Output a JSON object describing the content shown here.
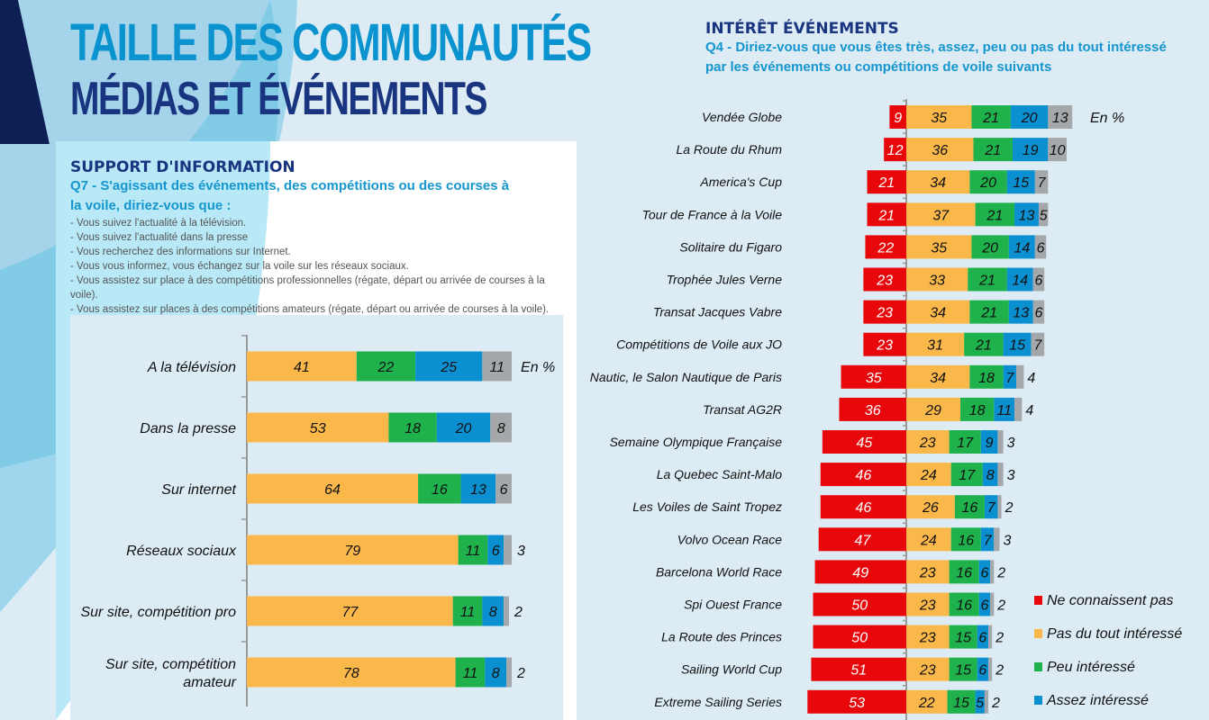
{
  "header": {
    "title_line1": "TAILLE DES COMMUNAUTÉS",
    "title_line2": "MÉDIAS ET ÉVÉNEMENTS"
  },
  "left_section": {
    "heading": "SUPPORT D'INFORMATION",
    "question": "Q7 - S'agissant des événements, des compétitions ou des courses à la voile, diriez-vous que :",
    "bullets": [
      "- Vous suivez l'actualité à la télévision.",
      "- Vous suivez l'actualité dans la presse",
      "- Vous recherchez des informations sur Internet.",
      "- Vous vous informez, vous échangez sur la voile sur les réseaux sociaux.",
      "- Vous assistez sur place à des compétitions professionnelles (régate, départ ou arrivée de courses à la voile).",
      "- Vous assistez sur places à des compétitions amateurs (régate, départ ou arrivée de courses à la voile)."
    ]
  },
  "right_section": {
    "heading": "INTÉRÊT ÉVÉNEMENTS",
    "question_line1": "Q4 - Diriez-vous que vous êtes très, assez, peu ou pas du tout intéressé",
    "question_line2": "par les événements ou compétitions de voile suivants"
  },
  "chart_data": [
    {
      "type": "bar",
      "orientation": "horizontal",
      "stacked": true,
      "unit_label": "En %",
      "categories": [
        "A la télévision",
        "Dans la presse",
        "Sur internet",
        "Réseaux sociaux",
        "Sur site, compétition pro",
        "Sur site, compétition amateur"
      ],
      "series": [
        {
          "color": "#fbb84a",
          "values": [
            41,
            53,
            64,
            79,
            77,
            78
          ]
        },
        {
          "color": "#1fb14b",
          "values": [
            22,
            18,
            16,
            11,
            11,
            11
          ]
        },
        {
          "color": "#0a8fd0",
          "values": [
            25,
            20,
            13,
            6,
            8,
            8
          ]
        },
        {
          "color": "#a5a8aa",
          "values": [
            11,
            8,
            6,
            3,
            2,
            2
          ]
        }
      ]
    },
    {
      "type": "bar",
      "orientation": "horizontal",
      "stacked": true,
      "diverging": true,
      "unit_label": "En %",
      "categories": [
        "Vendée Globe",
        "La Route du Rhum",
        "America's Cup",
        "Tour de France à la Voile",
        "Solitaire du Figaro",
        "Trophée Jules Verne",
        "Transat Jacques Vabre",
        "Compétitions de Voile aux JO",
        "Nautic, le Salon Nautique de Paris",
        "Transat AG2R",
        "Semaine Olympique Française",
        "La Quebec Saint-Malo",
        "Les Voiles de Saint Tropez",
        "Volvo Ocean Race",
        "Barcelona World Race",
        "Spi Ouest France",
        "La Route des Princes",
        "Sailing World Cup",
        "Extreme Sailing Series"
      ],
      "series": [
        {
          "name": "Ne connaissent pas",
          "color": "#e8070b",
          "side": "left",
          "values": [
            9,
            12,
            21,
            21,
            22,
            23,
            23,
            23,
            35,
            36,
            45,
            46,
            46,
            47,
            49,
            50,
            50,
            51,
            53
          ]
        },
        {
          "name": "Pas du tout intéressé",
          "color": "#fbb84a",
          "values": [
            35,
            36,
            34,
            37,
            35,
            33,
            34,
            31,
            34,
            29,
            23,
            24,
            26,
            24,
            23,
            23,
            23,
            23,
            22
          ]
        },
        {
          "name": "Peu intéressé",
          "color": "#1fb14b",
          "values": [
            21,
            21,
            20,
            21,
            20,
            21,
            21,
            21,
            18,
            18,
            17,
            17,
            16,
            16,
            16,
            16,
            15,
            15,
            15
          ]
        },
        {
          "name": "Assez intéressé",
          "color": "#0a8fd0",
          "values": [
            20,
            19,
            15,
            13,
            14,
            14,
            13,
            15,
            7,
            11,
            9,
            8,
            7,
            7,
            6,
            6,
            6,
            6,
            5
          ]
        },
        {
          "color": "#a5a8aa",
          "values": [
            13,
            10,
            7,
            5,
            6,
            6,
            6,
            7,
            4,
            4,
            3,
            3,
            2,
            3,
            2,
            2,
            2,
            2,
            2
          ]
        }
      ],
      "legend_position": "bottom-right"
    }
  ]
}
